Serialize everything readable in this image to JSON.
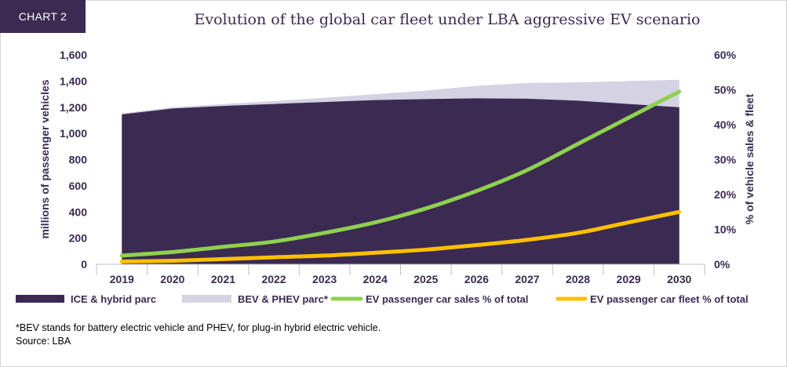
{
  "badge": "CHART 2",
  "title": "Evolution of the global car fleet under LBA aggressive EV scenario",
  "footnote": "*BEV stands for battery electric vehicle and PHEV, for plug-in hybrid electric vehicle.",
  "source": "Source: LBA",
  "colors": {
    "ice": "#3b2a52",
    "bev": "#d4d2e3",
    "sales": "#8fd14f",
    "fleet": "#ffc000"
  },
  "chart_data": {
    "type": "area",
    "categories": [
      "2019",
      "2020",
      "2021",
      "2022",
      "2023",
      "2024",
      "2025",
      "2026",
      "2027",
      "2028",
      "2029",
      "2030"
    ],
    "ylabel": "millions of passenger vehicles",
    "ylabel_right": "% of vehicle sales & fleet",
    "ylim": [
      0,
      1600
    ],
    "ylim_right": [
      0,
      60
    ],
    "yticks": [
      "0",
      "200",
      "400",
      "600",
      "800",
      "1,000",
      "1,200",
      "1,400",
      "1,600"
    ],
    "yticks_right": [
      "0%",
      "10%",
      "20%",
      "30%",
      "40%",
      "50%",
      "60%"
    ],
    "legend_position": "bottom",
    "series": [
      {
        "name": "ICE & hybrid parc",
        "type": "area",
        "axis": "left",
        "stacked": true,
        "values": [
          1145,
          1190,
          1210,
          1225,
          1240,
          1255,
          1262,
          1268,
          1265,
          1250,
          1225,
          1200
        ]
      },
      {
        "name": "BEV & PHEV parc*",
        "type": "area",
        "axis": "left",
        "stacked": true,
        "values": [
          8,
          10,
          15,
          22,
          32,
          45,
          65,
          95,
          120,
          140,
          175,
          210
        ]
      },
      {
        "name": "EV passenger car sales % of total",
        "type": "line",
        "axis": "right",
        "values": [
          2.5,
          3.5,
          5,
          6.5,
          9,
          12,
          16,
          21,
          27,
          34.5,
          42,
          49.5
        ]
      },
      {
        "name": "EV passenger car fleet % of total",
        "type": "line",
        "axis": "right",
        "values": [
          0.8,
          1,
          1.5,
          2,
          2.5,
          3.3,
          4.2,
          5.5,
          7,
          9,
          12,
          15
        ]
      }
    ]
  }
}
